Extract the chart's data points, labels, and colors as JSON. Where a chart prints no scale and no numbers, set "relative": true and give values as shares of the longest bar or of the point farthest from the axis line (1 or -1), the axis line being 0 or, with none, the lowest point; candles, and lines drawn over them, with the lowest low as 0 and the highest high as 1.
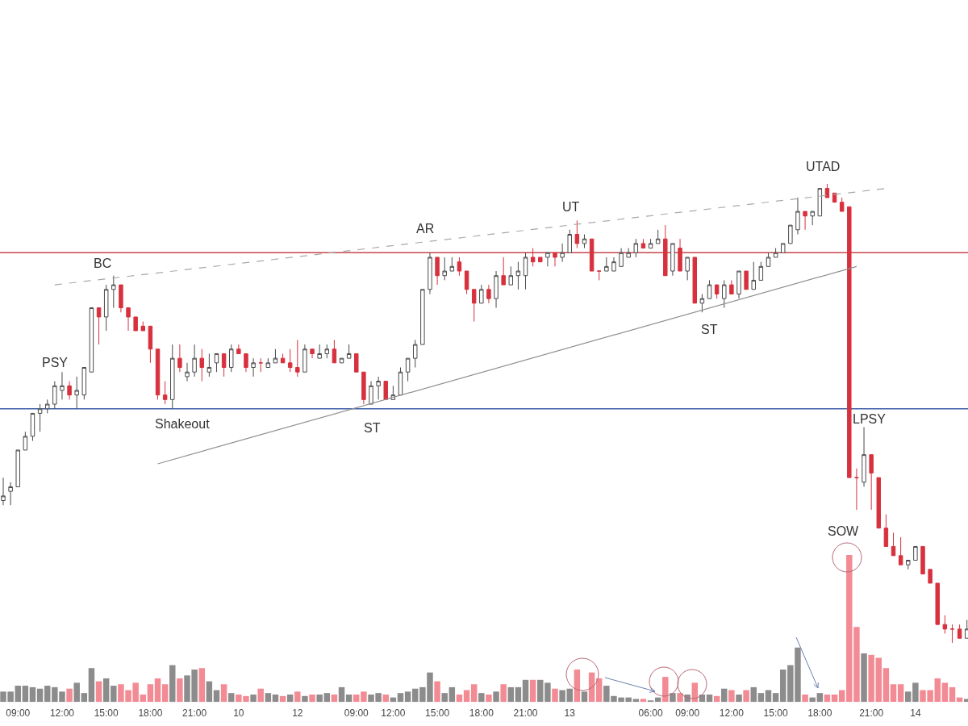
{
  "chart_data": [
    {
      "type": "candlestick",
      "relative": true,
      "categories": [
        null,
        null,
        null,
        null,
        null,
        null,
        null,
        null,
        null,
        null,
        null,
        null,
        null,
        null,
        null,
        null,
        null,
        null,
        null,
        null,
        null,
        null,
        null,
        null,
        null,
        null,
        null,
        null,
        null,
        null,
        null,
        null,
        null,
        null,
        null,
        null,
        null,
        null,
        null,
        null,
        null,
        null,
        null,
        null,
        null,
        null,
        null,
        null,
        null,
        null,
        null,
        null,
        null,
        null,
        null,
        null,
        null,
        null,
        null,
        null,
        null,
        null,
        null,
        null,
        null,
        null,
        null,
        null,
        null,
        null,
        null,
        null,
        null,
        null,
        null,
        null,
        null,
        null,
        null,
        null,
        null,
        null,
        null,
        null,
        null,
        null,
        null,
        null,
        null,
        null,
        null,
        null,
        null,
        null,
        null,
        null,
        null,
        null,
        null,
        null,
        null,
        null,
        null,
        null,
        null,
        null,
        null,
        null,
        null,
        null,
        null,
        null,
        null,
        null,
        null,
        null,
        null,
        null,
        null,
        null,
        null,
        null,
        null,
        null,
        null,
        null,
        null,
        null,
        null,
        null,
        null,
        null
      ],
      "ohlc": [
        [
          0.31,
          0.36,
          0.3,
          0.32
        ],
        [
          0.33,
          0.35,
          0.3,
          0.34
        ],
        [
          0.34,
          0.42,
          0.34,
          0.42
        ],
        [
          0.42,
          0.46,
          0.42,
          0.45
        ],
        [
          0.45,
          0.5,
          0.44,
          0.5
        ],
        [
          0.5,
          0.52,
          0.46,
          0.51
        ],
        [
          0.51,
          0.53,
          0.5,
          0.52
        ],
        [
          0.52,
          0.57,
          0.51,
          0.56
        ],
        [
          0.55,
          0.59,
          0.53,
          0.56
        ],
        [
          0.56,
          0.57,
          0.53,
          0.54
        ],
        [
          0.54,
          0.58,
          0.51,
          0.55
        ],
        [
          0.54,
          0.6,
          0.53,
          0.6
        ],
        [
          0.59,
          0.73,
          0.59,
          0.73
        ],
        [
          0.73,
          0.73,
          0.65,
          0.71
        ],
        [
          0.71,
          0.78,
          0.68,
          0.77
        ],
        [
          0.77,
          0.8,
          0.73,
          0.78
        ],
        [
          0.78,
          0.78,
          0.72,
          0.73
        ],
        [
          0.73,
          0.73,
          0.68,
          0.71
        ],
        [
          0.71,
          0.71,
          0.68,
          0.68
        ],
        [
          0.69,
          0.7,
          0.68,
          0.68
        ],
        [
          0.69,
          0.69,
          0.61,
          0.64
        ],
        [
          0.64,
          0.64,
          0.53,
          0.54
        ],
        [
          0.54,
          0.57,
          0.52,
          0.53
        ],
        [
          0.53,
          0.65,
          0.51,
          0.62
        ],
        [
          0.62,
          0.65,
          0.59,
          0.6
        ],
        [
          0.58,
          0.61,
          0.57,
          0.59
        ],
        [
          0.59,
          0.65,
          0.58,
          0.62
        ],
        [
          0.62,
          0.64,
          0.57,
          0.6
        ],
        [
          0.59,
          0.63,
          0.58,
          0.6
        ],
        [
          0.61,
          0.63,
          0.59,
          0.63
        ],
        [
          0.63,
          0.63,
          0.58,
          0.6
        ],
        [
          0.6,
          0.65,
          0.59,
          0.64
        ],
        [
          0.64,
          0.65,
          0.63,
          0.63
        ],
        [
          0.63,
          0.63,
          0.59,
          0.6
        ],
        [
          0.6,
          0.62,
          0.58,
          0.61
        ],
        [
          0.61,
          0.62,
          0.59,
          0.61
        ],
        [
          0.6,
          0.62,
          0.6,
          0.61
        ],
        [
          0.61,
          0.64,
          0.61,
          0.62
        ],
        [
          0.62,
          0.63,
          0.61,
          0.61
        ],
        [
          0.61,
          0.64,
          0.59,
          0.6
        ],
        [
          0.6,
          0.66,
          0.58,
          0.59
        ],
        [
          0.59,
          0.65,
          0.59,
          0.64
        ],
        [
          0.64,
          0.64,
          0.62,
          0.63
        ],
        [
          0.62,
          0.65,
          0.62,
          0.63
        ],
        [
          0.63,
          0.65,
          0.62,
          0.64
        ],
        [
          0.64,
          0.66,
          0.61,
          0.61
        ],
        [
          0.61,
          0.62,
          0.61,
          0.62
        ],
        [
          0.62,
          0.65,
          0.62,
          0.63
        ],
        [
          0.63,
          0.63,
          0.59,
          0.59
        ],
        [
          0.59,
          0.59,
          0.52,
          0.53
        ],
        [
          0.52,
          0.57,
          0.52,
          0.56
        ],
        [
          0.56,
          0.58,
          0.53,
          0.57
        ],
        [
          0.57,
          0.57,
          0.53,
          0.53
        ],
        [
          0.53,
          0.56,
          0.53,
          0.54
        ],
        [
          0.54,
          0.6,
          0.54,
          0.59
        ],
        [
          0.59,
          0.62,
          0.57,
          0.62
        ],
        [
          0.62,
          0.66,
          0.6,
          0.65
        ],
        [
          0.65,
          0.77,
          0.65,
          0.77
        ],
        [
          0.77,
          0.85,
          0.76,
          0.84
        ],
        [
          0.84,
          0.84,
          0.78,
          0.8
        ],
        [
          0.8,
          0.84,
          0.79,
          0.81
        ],
        [
          0.81,
          0.84,
          0.81,
          0.82
        ],
        [
          0.83,
          0.84,
          0.8,
          0.81
        ],
        [
          0.81,
          0.81,
          0.76,
          0.77
        ],
        [
          0.77,
          0.77,
          0.7,
          0.74
        ],
        [
          0.74,
          0.78,
          0.74,
          0.77
        ],
        [
          0.77,
          0.78,
          0.74,
          0.75
        ],
        [
          0.75,
          0.81,
          0.73,
          0.8
        ],
        [
          0.8,
          0.84,
          0.78,
          0.78
        ],
        [
          0.78,
          0.82,
          0.78,
          0.8
        ],
        [
          0.8,
          0.83,
          0.77,
          0.81
        ],
        [
          0.8,
          0.85,
          0.77,
          0.84
        ],
        [
          0.84,
          0.86,
          0.82,
          0.83
        ],
        [
          0.84,
          0.84,
          0.83,
          0.83
        ],
        [
          0.84,
          0.85,
          0.82,
          0.85
        ],
        [
          0.85,
          0.85,
          0.82,
          0.84
        ],
        [
          0.84,
          0.87,
          0.83,
          0.85
        ],
        [
          0.85,
          0.9,
          0.85,
          0.89
        ],
        [
          0.89,
          0.92,
          0.86,
          0.87
        ],
        [
          0.87,
          0.89,
          0.86,
          0.88
        ],
        [
          0.88,
          0.88,
          0.81,
          0.81
        ],
        [
          0.81,
          0.81,
          0.79,
          0.81
        ],
        [
          0.81,
          0.84,
          0.81,
          0.82
        ],
        [
          0.81,
          0.84,
          0.81,
          0.83
        ],
        [
          0.82,
          0.86,
          0.82,
          0.85
        ],
        [
          0.84,
          0.86,
          0.84,
          0.85
        ],
        [
          0.85,
          0.88,
          0.84,
          0.87
        ],
        [
          0.87,
          0.88,
          0.86,
          0.86
        ],
        [
          0.86,
          0.88,
          0.86,
          0.87
        ],
        [
          0.87,
          0.9,
          0.87,
          0.88
        ],
        [
          0.88,
          0.91,
          0.8,
          0.8
        ],
        [
          0.81,
          0.87,
          0.8,
          0.87
        ],
        [
          0.86,
          0.88,
          0.81,
          0.81
        ],
        [
          0.81,
          0.84,
          0.79,
          0.84
        ],
        [
          0.84,
          0.84,
          0.74,
          0.74
        ],
        [
          0.74,
          0.76,
          0.72,
          0.75
        ],
        [
          0.75,
          0.79,
          0.75,
          0.78
        ],
        [
          0.78,
          0.78,
          0.75,
          0.76
        ],
        [
          0.75,
          0.79,
          0.73,
          0.78
        ],
        [
          0.78,
          0.79,
          0.76,
          0.76
        ],
        [
          0.76,
          0.81,
          0.75,
          0.81
        ],
        [
          0.81,
          0.81,
          0.77,
          0.77
        ],
        [
          0.77,
          0.83,
          0.77,
          0.79
        ],
        [
          0.79,
          0.83,
          0.79,
          0.82
        ],
        [
          0.82,
          0.85,
          0.82,
          0.84
        ],
        [
          0.84,
          0.86,
          0.84,
          0.85
        ],
        [
          0.85,
          0.87,
          0.85,
          0.87
        ],
        [
          0.87,
          0.91,
          0.87,
          0.91
        ],
        [
          0.9,
          0.97,
          0.89,
          0.94
        ],
        [
          0.94,
          0.94,
          0.9,
          0.93
        ],
        [
          0.93,
          0.94,
          0.91,
          0.94
        ],
        [
          0.93,
          0.99,
          0.93,
          0.99
        ],
        [
          0.99,
          1.0,
          0.97,
          0.97
        ],
        [
          0.98,
          0.98,
          0.96,
          0.96
        ],
        [
          0.96,
          0.97,
          0.94,
          0.94
        ],
        [
          0.95,
          0.95,
          0.36,
          0.36
        ],
        [
          0.36,
          0.38,
          0.29,
          0.36
        ],
        [
          0.35,
          0.47,
          0.34,
          0.41
        ],
        [
          0.41,
          0.41,
          0.29,
          0.37
        ],
        [
          0.36,
          0.36,
          0.25,
          0.25
        ],
        [
          0.25,
          0.28,
          0.21,
          0.21
        ],
        [
          0.21,
          0.24,
          0.19,
          0.19
        ],
        [
          0.19,
          0.23,
          0.17,
          0.17
        ],
        [
          0.17,
          0.18,
          0.16,
          0.18
        ],
        [
          0.18,
          0.21,
          0.18,
          0.21
        ],
        [
          0.21,
          0.21,
          0.15,
          0.15
        ],
        [
          0.16,
          0.16,
          0.13,
          0.13
        ],
        [
          0.13,
          0.13,
          0.04,
          0.04
        ],
        [
          0.04,
          0.06,
          0.02,
          0.03
        ],
        [
          0.03,
          0.04,
          0.0,
          0.03
        ],
        [
          0.03,
          0.04,
          0.01,
          0.01
        ],
        [
          0.01,
          0.05,
          0.01,
          0.03
        ]
      ],
      "colors": [
        "#ffffff",
        "#ffffff",
        "#ffffff",
        "#ffffff",
        "#ffffff",
        "#ffffff",
        "#ffffff",
        "#ffffff",
        "#ffffff",
        "#d7313e",
        "#ffffff",
        "#ffffff",
        "#ffffff",
        "#d7313e",
        "#ffffff",
        "#ffffff",
        "#d7313e",
        "#d7313e",
        "#d7313e",
        "#d7313e",
        "#d7313e",
        "#d7313e",
        "#d7313e",
        "#ffffff",
        "#d7313e",
        "#ffffff",
        "#ffffff",
        "#d7313e",
        "#ffffff",
        "#ffffff",
        "#d7313e",
        "#ffffff",
        "#d7313e",
        "#d7313e",
        "#ffffff",
        "#d7313e",
        "#ffffff",
        "#ffffff",
        "#d7313e",
        "#d7313e",
        "#d7313e",
        "#ffffff",
        "#d7313e",
        "#ffffff",
        "#ffffff",
        "#d7313e",
        "#ffffff",
        "#ffffff",
        "#d7313e",
        "#d7313e",
        "#ffffff",
        "#ffffff",
        "#d7313e",
        "#ffffff",
        "#ffffff",
        "#ffffff",
        "#ffffff",
        "#ffffff",
        "#ffffff",
        "#d7313e",
        "#ffffff",
        "#ffffff",
        "#d7313e",
        "#d7313e",
        "#d7313e",
        "#ffffff",
        "#d7313e",
        "#ffffff",
        "#d7313e",
        "#ffffff",
        "#ffffff",
        "#ffffff",
        "#d7313e",
        "#d7313e",
        "#ffffff",
        "#d7313e",
        "#ffffff",
        "#ffffff",
        "#d7313e",
        "#ffffff",
        "#d7313e",
        "#d7313e",
        "#ffffff",
        "#ffffff",
        "#ffffff",
        "#ffffff",
        "#ffffff",
        "#d7313e",
        "#ffffff",
        "#ffffff",
        "#d7313e",
        "#ffffff",
        "#d7313e",
        "#ffffff",
        "#d7313e",
        "#ffffff",
        "#ffffff",
        "#d7313e",
        "#ffffff",
        "#d7313e",
        "#ffffff",
        "#d7313e",
        "#ffffff",
        "#ffffff",
        "#ffffff",
        "#ffffff",
        "#ffffff",
        "#ffffff",
        "#ffffff",
        "#d7313e",
        "#ffffff",
        "#ffffff",
        "#d7313e",
        "#d7313e",
        "#d7313e",
        "#d7313e",
        "#d7313e",
        "#ffffff",
        "#d7313e",
        "#d7313e",
        "#d7313e",
        "#d7313e",
        "#d7313e",
        "#ffffff",
        "#ffffff",
        "#d7313e",
        "#d7313e",
        "#d7313e",
        "#d7313e",
        "#d7313e",
        "#d7313e",
        "#ffffff"
      ],
      "series": [
        {
          "type": "line",
          "color": "#a9a9a9",
          "line_style": "dashed",
          "values": [
            null,
            null,
            null,
            null,
            null,
            null,
            null,
            0.78,
            null,
            null,
            null,
            null,
            null,
            null,
            null,
            null,
            null,
            null,
            null,
            null,
            null,
            null,
            null,
            null,
            null,
            null,
            null,
            null,
            null,
            null,
            null,
            null,
            null,
            null,
            null,
            null,
            null,
            null,
            null,
            null,
            null,
            null,
            null,
            null,
            null,
            null,
            null,
            null,
            null,
            null,
            null,
            null,
            null,
            null,
            null,
            null,
            null,
            null,
            null,
            null,
            null,
            null,
            null,
            null,
            null,
            null,
            null,
            null,
            null,
            null,
            null,
            null,
            null,
            null,
            null,
            null,
            null,
            null,
            null,
            null,
            null,
            null,
            null,
            null,
            null,
            null,
            null,
            null,
            null,
            null,
            null,
            null,
            null,
            null,
            null,
            null,
            null,
            null,
            null,
            null,
            null,
            null,
            null,
            null,
            null,
            null,
            null,
            null,
            null,
            null,
            null,
            null,
            null,
            null,
            null,
            null,
            null,
            null,
            null,
            null,
            0.99,
            null,
            null,
            null,
            null,
            null,
            null,
            null,
            null,
            null,
            null,
            null
          ]
        },
        {
          "type": "line",
          "color": "#8f8f8f",
          "line_style": "solid",
          "values": [
            null,
            null,
            null,
            null,
            null,
            null,
            null,
            null,
            null,
            null,
            null,
            null,
            null,
            null,
            null,
            null,
            null,
            null,
            null,
            null,
            null,
            0.39,
            null,
            null,
            null,
            null,
            null,
            null,
            null,
            null,
            null,
            null,
            null,
            null,
            null,
            null,
            null,
            null,
            null,
            null,
            null,
            null,
            null,
            null,
            null,
            null,
            null,
            null,
            null,
            null,
            null,
            null,
            null,
            null,
            null,
            null,
            null,
            null,
            null,
            null,
            null,
            null,
            null,
            null,
            null,
            null,
            null,
            null,
            null,
            null,
            null,
            null,
            null,
            null,
            null,
            null,
            null,
            null,
            null,
            null,
            null,
            null,
            null,
            null,
            null,
            null,
            null,
            null,
            null,
            null,
            null,
            null,
            null,
            null,
            null,
            null,
            null,
            null,
            null,
            null,
            null,
            null,
            null,
            null,
            null,
            null,
            null,
            null,
            null,
            null,
            null,
            null,
            null,
            null,
            null,
            null,
            0.82,
            null,
            null,
            null,
            null,
            null,
            null,
            null,
            null,
            null,
            null,
            null,
            null,
            null,
            null,
            null
          ]
        }
      ],
      "ref_lines": [
        {
          "axis": "y",
          "value": 0.85,
          "color": "#c8464c"
        },
        {
          "axis": "y",
          "value": 0.51,
          "color": "#3d5ea8"
        }
      ],
      "annotations": [
        "PSY",
        "BC",
        "Shakeout",
        "ST",
        "AR",
        "UT",
        "ST",
        "UTAD",
        "LPSY",
        "SOW"
      ]
    },
    {
      "type": "bar",
      "relative": true,
      "tick_labels": "x",
      "categories": [
        null,
        null,
        "09:00",
        null,
        null,
        null,
        null,
        null,
        "12:00",
        null,
        null,
        null,
        null,
        null,
        "15:00",
        null,
        null,
        null,
        null,
        null,
        "18:00",
        null,
        null,
        null,
        null,
        null,
        "21:00",
        null,
        null,
        null,
        null,
        null,
        "10",
        null,
        null,
        null,
        null,
        null,
        null,
        null,
        "12",
        null,
        null,
        null,
        null,
        null,
        null,
        null,
        "09:00",
        null,
        null,
        null,
        null,
        "12:00",
        null,
        null,
        null,
        null,
        null,
        "15:00",
        null,
        null,
        null,
        null,
        null,
        "18:00",
        null,
        null,
        null,
        null,
        null,
        "21:00",
        null,
        null,
        null,
        null,
        null,
        "13",
        null,
        null,
        null,
        null,
        null,
        null,
        null,
        null,
        null,
        null,
        "06:00",
        null,
        null,
        null,
        null,
        "09:00",
        null,
        null,
        null,
        null,
        null,
        "12:00",
        null,
        null,
        null,
        null,
        null,
        "15:00",
        null,
        null,
        null,
        null,
        null,
        "18:00",
        null,
        null,
        null,
        null,
        null,
        null,
        "21:00",
        null,
        null,
        null,
        null,
        null,
        "14",
        null,
        null,
        null,
        null,
        null,
        null,
        null
      ],
      "values": [
        0.07,
        0.07,
        0.11,
        0.11,
        0.1,
        0.09,
        0.11,
        0.1,
        0.07,
        0.09,
        0.13,
        0.06,
        0.23,
        0.14,
        0.16,
        0.11,
        0.12,
        0.08,
        0.13,
        0.05,
        0.12,
        0.16,
        0.12,
        0.25,
        0.16,
        0.18,
        0.22,
        0.23,
        0.14,
        0.08,
        0.12,
        0.06,
        0.05,
        0.04,
        0.05,
        0.09,
        0.06,
        0.05,
        0.04,
        0.05,
        0.07,
        0.04,
        0.05,
        0.05,
        0.06,
        0.05,
        0.1,
        0.05,
        0.05,
        0.07,
        0.05,
        0.06,
        0.05,
        0.03,
        0.06,
        0.07,
        0.09,
        0.1,
        0.2,
        0.14,
        0.06,
        0.1,
        0.05,
        0.08,
        0.12,
        0.06,
        0.05,
        0.07,
        0.12,
        0.1,
        0.1,
        0.15,
        0.15,
        0.15,
        0.13,
        0.09,
        0.08,
        0.09,
        0.22,
        0.07,
        0.2,
        0.16,
        0.11,
        0.04,
        0.03,
        0.03,
        0.02,
        0.02,
        0.01,
        0.03,
        0.17,
        0.06,
        0.06,
        0.05,
        0.13,
        0.05,
        0.05,
        0.04,
        0.09,
        0.08,
        0.05,
        0.08,
        0.1,
        0.06,
        0.08,
        0.06,
        0.22,
        0.25,
        0.37,
        0.05,
        0.03,
        0.06,
        0.05,
        0.05,
        0.08,
        1.0,
        0.51,
        0.33,
        0.32,
        0.3,
        0.23,
        0.12,
        0.12,
        0.07,
        0.13,
        0.08,
        0.08,
        0.16,
        0.13,
        0.1,
        0.03,
        0.02
      ],
      "colors": [
        "#8c8c8c",
        "#8c8c8c",
        "#8c8c8c",
        "#8c8c8c",
        "#8c8c8c",
        "#8c8c8c",
        "#8c8c8c",
        "#8c8c8c",
        "#8c8c8c",
        "#f28b94",
        "#8c8c8c",
        "#8c8c8c",
        "#8c8c8c",
        "#f28b94",
        "#8c8c8c",
        "#8c8c8c",
        "#f28b94",
        "#f28b94",
        "#f28b94",
        "#f28b94",
        "#f28b94",
        "#f28b94",
        "#f28b94",
        "#8c8c8c",
        "#f28b94",
        "#8c8c8c",
        "#8c8c8c",
        "#f28b94",
        "#8c8c8c",
        "#8c8c8c",
        "#f28b94",
        "#8c8c8c",
        "#f28b94",
        "#f28b94",
        "#8c8c8c",
        "#f28b94",
        "#8c8c8c",
        "#8c8c8c",
        "#f28b94",
        "#8c8c8c",
        "#f28b94",
        "#8c8c8c",
        "#f28b94",
        "#8c8c8c",
        "#8c8c8c",
        "#f28b94",
        "#8c8c8c",
        "#8c8c8c",
        "#f28b94",
        "#f28b94",
        "#8c8c8c",
        "#8c8c8c",
        "#f28b94",
        "#8c8c8c",
        "#8c8c8c",
        "#8c8c8c",
        "#8c8c8c",
        "#8c8c8c",
        "#8c8c8c",
        "#f28b94",
        "#8c8c8c",
        "#8c8c8c",
        "#f28b94",
        "#f28b94",
        "#f28b94",
        "#8c8c8c",
        "#f28b94",
        "#8c8c8c",
        "#f28b94",
        "#8c8c8c",
        "#8c8c8c",
        "#8c8c8c",
        "#f28b94",
        "#8c8c8c",
        "#8c8c8c",
        "#f28b94",
        "#8c8c8c",
        "#8c8c8c",
        "#f28b94",
        "#8c8c8c",
        "#f28b94",
        "#f28b94",
        "#8c8c8c",
        "#8c8c8c",
        "#8c8c8c",
        "#8c8c8c",
        "#8c8c8c",
        "#f28b94",
        "#8c8c8c",
        "#8c8c8c",
        "#f28b94",
        "#8c8c8c",
        "#f28b94",
        "#8c8c8c",
        "#f28b94",
        "#8c8c8c",
        "#8c8c8c",
        "#f28b94",
        "#8c8c8c",
        "#f28b94",
        "#8c8c8c",
        "#f28b94",
        "#8c8c8c",
        "#8c8c8c",
        "#8c8c8c",
        "#8c8c8c",
        "#8c8c8c",
        "#8c8c8c",
        "#8c8c8c",
        "#f28b94",
        "#8c8c8c",
        "#8c8c8c",
        "#f28b94",
        "#f28b94",
        "#f28b94",
        "#f28b94",
        "#f28b94",
        "#8c8c8c",
        "#f28b94",
        "#f28b94",
        "#f28b94",
        "#f28b94",
        "#f28b94",
        "#8c8c8c",
        "#8c8c8c",
        "#f28b94",
        "#f28b94",
        "#f28b94",
        "#f28b94",
        "#f28b94",
        "#f28b94",
        "#8c8c8c"
      ]
    }
  ]
}
